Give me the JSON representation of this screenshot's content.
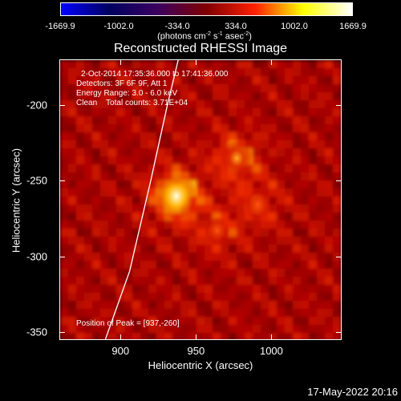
{
  "colorbar": {
    "ticks": [
      "-1669.9",
      "-1002.0",
      "-334.0",
      "334.0",
      "1002.0",
      "1669.9"
    ],
    "units_prefix": "(photons cm",
    "units_exp1": "-2",
    "units_mid1": " s",
    "units_exp2": "-1",
    "units_mid2": " asec",
    "units_exp3": "-2",
    "units_suffix": ")",
    "colors": [
      "#0000ff",
      "#000060",
      "#3c0060",
      "#800000",
      "#ff2000",
      "#ffff00",
      "#ffffff"
    ]
  },
  "title": "Reconstructed RHESSI Image",
  "annotations": {
    "line1": "2-Oct-2014 17:35:36.000 to 17:41:36.000",
    "line2": "Detectors: 3F 6F 9F, Att 1",
    "line3": "Energy Range: 3.0 - 6.0 keV",
    "line4": "Clean    Total counts: 3.71E+04",
    "peak": "Position of Peak = [937,-260]"
  },
  "footer": "17-May-2022 20:16",
  "chart_data": {
    "type": "heatmap",
    "title": "Reconstructed RHESSI Image",
    "xlabel": "Heliocentric X (arcsec)",
    "ylabel": "Heliocentric Y (arcsec)",
    "xlim": [
      860,
      1046
    ],
    "ylim": [
      -355,
      -170
    ],
    "x_ticks": [
      900,
      950,
      1000
    ],
    "y_ticks": [
      -200,
      -250,
      -300,
      -350
    ],
    "colorbar_range": [
      -1669.9,
      1669.9
    ],
    "sources": [
      {
        "x": 937,
        "y": -260,
        "relative_intensity": 1.0
      },
      {
        "x": 977,
        "y": -235,
        "relative_intensity": 0.6
      },
      {
        "x": 991,
        "y": -266,
        "relative_intensity": 0.4
      },
      {
        "x": 964,
        "y": -283,
        "relative_intensity": 0.35
      }
    ],
    "peak_position": [
      937,
      -260
    ],
    "limb_curve": [
      [
        890,
        -355
      ],
      [
        906,
        -310
      ],
      [
        920,
        -250
      ],
      [
        931,
        -200
      ],
      [
        943,
        -150
      ]
    ]
  }
}
